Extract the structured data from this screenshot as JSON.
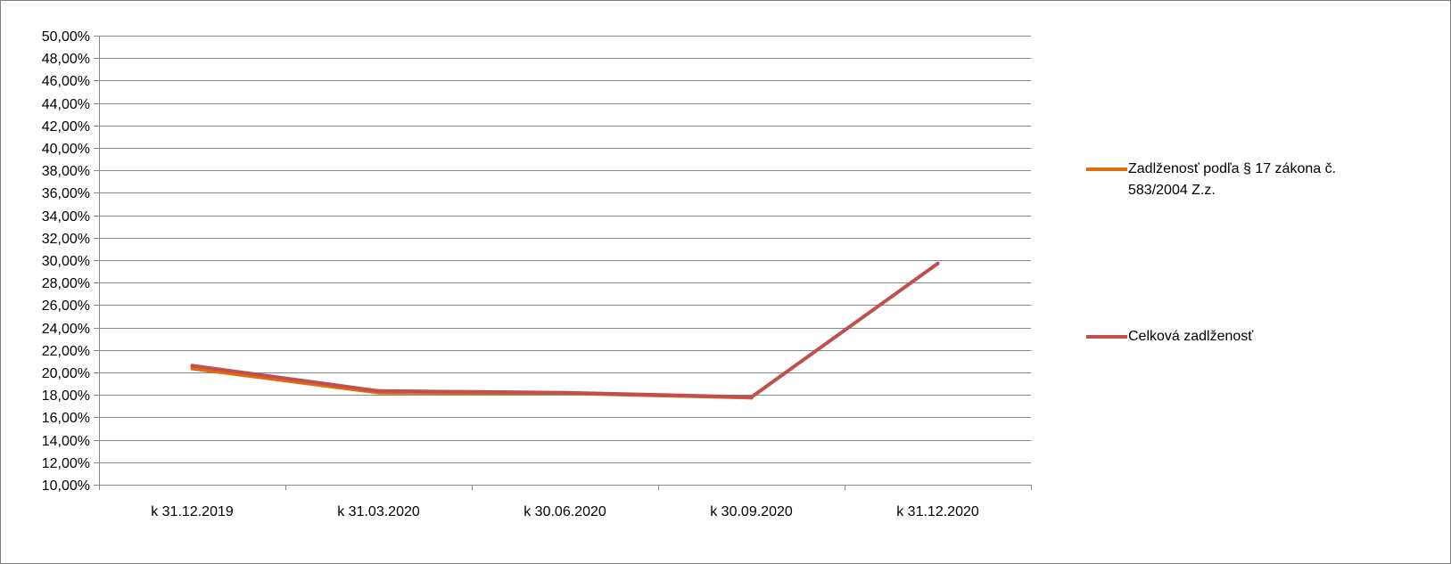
{
  "chart_data": {
    "type": "line",
    "title": "",
    "xlabel": "",
    "ylabel": "",
    "categories": [
      "k 31.12.2019",
      "k 31.03.2020",
      "k 30.06.2020",
      "k 30.09.2020",
      "k 31.12.2020"
    ],
    "y_tick_labels": [
      "10,00%",
      "12,00%",
      "14,00%",
      "16,00%",
      "18,00%",
      "20,00%",
      "22,00%",
      "24,00%",
      "26,00%",
      "28,00%",
      "30,00%",
      "32,00%",
      "34,00%",
      "36,00%",
      "38,00%",
      "40,00%",
      "42,00%",
      "44,00%",
      "46,00%",
      "48,00%",
      "50,00%"
    ],
    "ylim": [
      10,
      50
    ],
    "y_step": 2,
    "grid": true,
    "legend_position": "right",
    "series": [
      {
        "name": "Zadlženosť podľa § 17 zákona č. 583/2004 Z.z.",
        "color": "#E36C0A",
        "values": [
          20.35,
          18.2,
          18.15,
          17.75,
          null
        ]
      },
      {
        "name": "Celková zadlženosť",
        "color": "#C0504D",
        "values": [
          20.6,
          18.35,
          18.2,
          17.8,
          29.7
        ]
      }
    ]
  }
}
